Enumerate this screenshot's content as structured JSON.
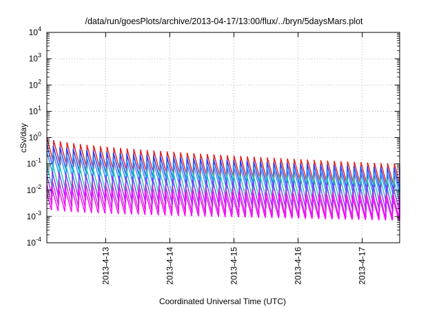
{
  "chart_data": {
    "type": "line",
    "title": "/data/run/goesPlots/archive/2013-04-17/13:00/flux/../bryn/5daysMars.plot",
    "xlabel": "Coordinated Universal Time (UTC)",
    "ylabel": "cSv/day",
    "yscale": "log",
    "ylim": [
      0.0001,
      10000
    ],
    "xlim": [
      "2013-04-12 02:00",
      "2013-04-17 14:00"
    ],
    "y_ticks": [
      {
        "base": "10",
        "exp": "4"
      },
      {
        "base": "10",
        "exp": "3"
      },
      {
        "base": "10",
        "exp": "2"
      },
      {
        "base": "10",
        "exp": "1"
      },
      {
        "base": "10",
        "exp": "0"
      },
      {
        "base": "10",
        "exp": "-1"
      },
      {
        "base": "10",
        "exp": "-2"
      },
      {
        "base": "10",
        "exp": "-3"
      },
      {
        "base": "10",
        "exp": "-4"
      }
    ],
    "y_tick_values": [
      10000,
      1000,
      100,
      10,
      1,
      0.1,
      0.01,
      0.001,
      0.0001
    ],
    "x_ticks": [
      {
        "label": "2013-4-13",
        "value": "2013-04-13 00:00"
      },
      {
        "label": "2013-4-14",
        "value": "2013-04-14 00:00"
      },
      {
        "label": "2013-4-15",
        "value": "2013-04-15 00:00"
      },
      {
        "label": "2013-4-16",
        "value": "2013-04-16 00:00"
      },
      {
        "label": "2013-4-17",
        "value": "2013-04-17 00:00"
      }
    ],
    "grid": true,
    "pattern": "sawtooth",
    "sawtooth_period_hours": 2.5,
    "series": [
      {
        "color": "#e41a1c",
        "peak_start": 1.0,
        "peak_end": 0.1,
        "trough_ratio": 0.12
      },
      {
        "color": "#1f3cff",
        "peak_start": 0.6,
        "peak_end": 0.07,
        "trough_ratio": 0.12
      },
      {
        "color": "#2f8cff",
        "peak_start": 0.35,
        "peak_end": 0.05,
        "trough_ratio": 0.12
      },
      {
        "color": "#20c8c0",
        "peak_start": 0.12,
        "peak_end": 0.03,
        "trough_ratio": 0.1
      },
      {
        "color": "#7a3cff",
        "peak_start": 0.06,
        "peak_end": 0.015,
        "trough_ratio": 0.1
      },
      {
        "color": "#c030d8",
        "peak_start": 0.03,
        "peak_end": 0.008,
        "trough_ratio": 0.1
      },
      {
        "color": "#ff00ff",
        "peak_start": 0.015,
        "peak_end": 0.006,
        "trough_ratio": 0.12
      }
    ]
  }
}
